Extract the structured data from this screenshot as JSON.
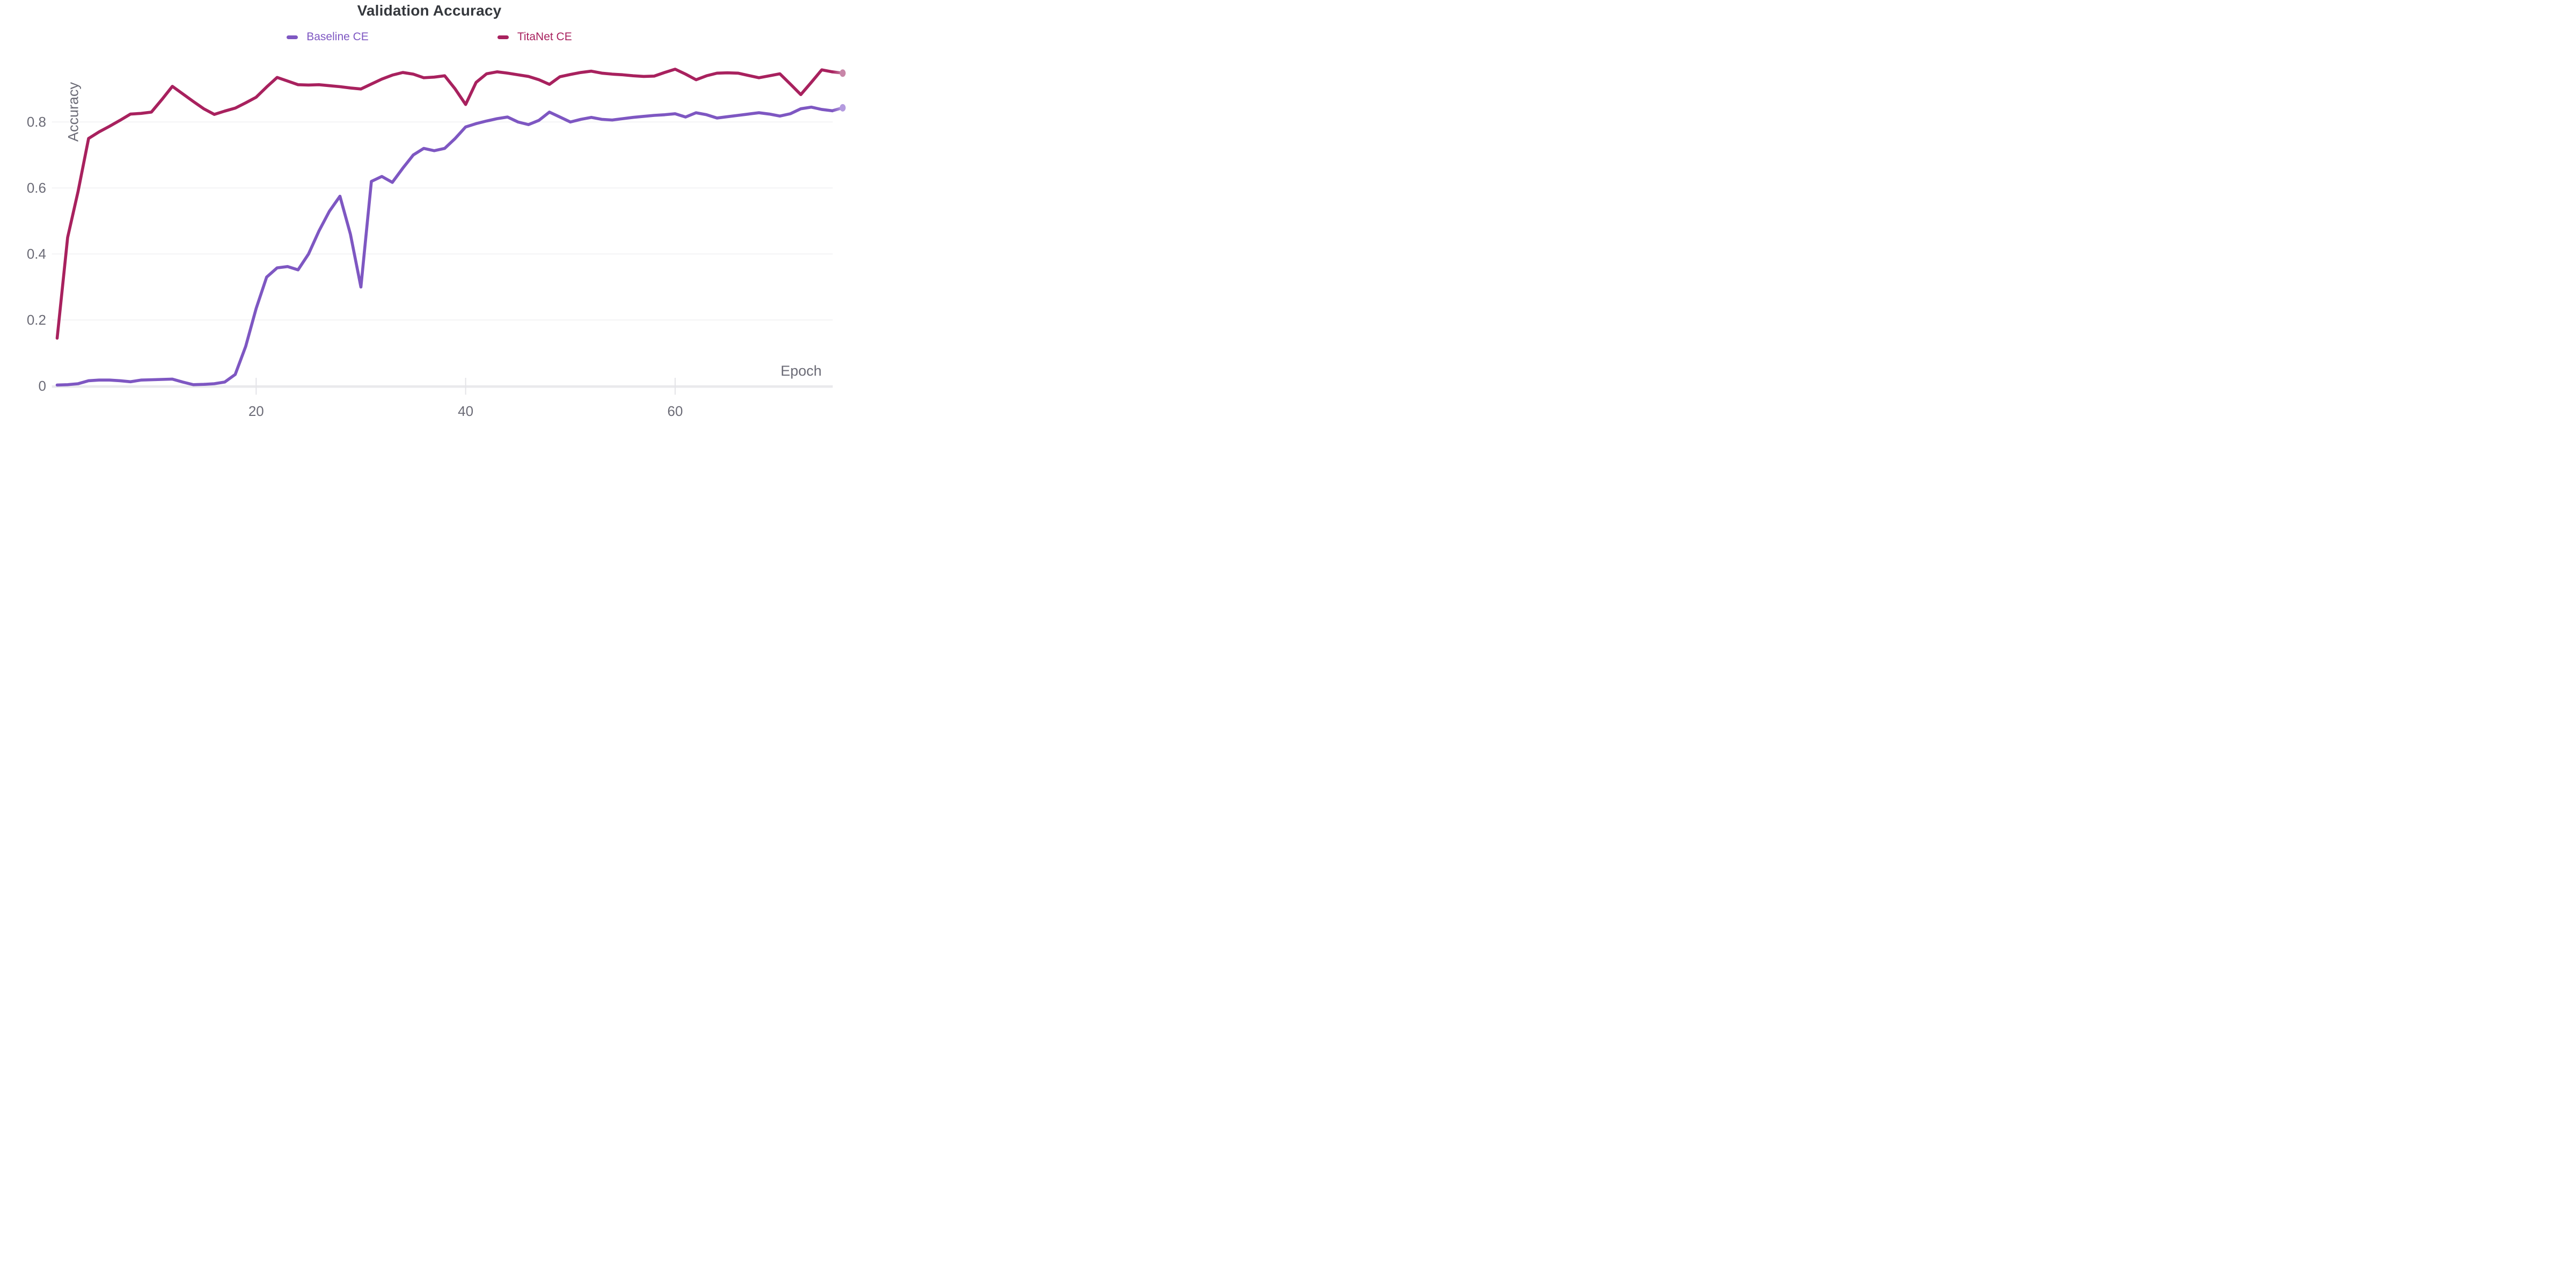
{
  "chart": {
    "title": "Validation Accuracy",
    "x_axis_label": "Epoch",
    "y_axis_label": "Accuracy"
  },
  "legend": [
    {
      "label": "Baseline CE",
      "color": "#7E57C2"
    },
    {
      "label": "TitaNet CE",
      "color": "#A8215E"
    }
  ],
  "colors": {
    "title_text": "#35383D",
    "axis_text": "#6B6B76",
    "gridline": "#EFEFF1",
    "baseline_band": "#E9E9EC",
    "tick_mark": "#E4E4E8",
    "background": "#FFFFFF"
  },
  "chart_data": {
    "type": "line",
    "title": "Validation Accuracy",
    "xlabel": "Epoch",
    "ylabel": "Accuracy",
    "x_ticks": [
      20,
      40,
      60
    ],
    "y_ticks": [
      0,
      0.2,
      0.4,
      0.6,
      0.8
    ],
    "xlim": [
      1,
      76
    ],
    "ylim": [
      0,
      1.02
    ],
    "grid": "horizontal-only",
    "legend_position": "top-center",
    "epochs": [
      1,
      2,
      3,
      4,
      5,
      6,
      7,
      8,
      9,
      10,
      11,
      12,
      13,
      14,
      15,
      16,
      17,
      18,
      19,
      20,
      21,
      22,
      23,
      24,
      25,
      26,
      27,
      28,
      29,
      30,
      31,
      32,
      33,
      34,
      35,
      36,
      37,
      38,
      39,
      40,
      41,
      42,
      43,
      44,
      45,
      46,
      47,
      48,
      49,
      50,
      51,
      52,
      53,
      54,
      55,
      56,
      57,
      58,
      59,
      60,
      61,
      62,
      63,
      64,
      65,
      66,
      67,
      68,
      69,
      70,
      71,
      72,
      73,
      74,
      75,
      76
    ],
    "series": [
      {
        "name": "Baseline CE",
        "color": "#7E57C2",
        "endpoint_color": "#B49BDF",
        "values": [
          0.003,
          0.004,
          0.007,
          0.016,
          0.018,
          0.018,
          0.016,
          0.013,
          0.018,
          0.019,
          0.02,
          0.021,
          0.012,
          0.004,
          0.005,
          0.007,
          0.012,
          0.035,
          0.12,
          0.235,
          0.33,
          0.358,
          0.362,
          0.352,
          0.4,
          0.47,
          0.53,
          0.575,
          0.46,
          0.3,
          0.62,
          0.635,
          0.617,
          0.66,
          0.7,
          0.72,
          0.713,
          0.72,
          0.75,
          0.785,
          0.795,
          0.803,
          0.81,
          0.815,
          0.8,
          0.792,
          0.805,
          0.83,
          0.815,
          0.8,
          0.808,
          0.814,
          0.808,
          0.806,
          0.81,
          0.814,
          0.817,
          0.82,
          0.822,
          0.825,
          0.815,
          0.828,
          0.822,
          0.812,
          0.816,
          0.82,
          0.824,
          0.828,
          0.824,
          0.818,
          0.825,
          0.84,
          0.845,
          0.838,
          0.834,
          0.843
        ]
      },
      {
        "name": "TitaNet CE",
        "color": "#A8215E",
        "endpoint_color": "#C886A8",
        "values": [
          0.145,
          0.45,
          0.59,
          0.75,
          0.77,
          0.787,
          0.805,
          0.824,
          0.826,
          0.83,
          0.868,
          0.908,
          0.885,
          0.862,
          0.84,
          0.823,
          0.833,
          0.842,
          0.858,
          0.875,
          0.906,
          0.935,
          0.924,
          0.913,
          0.912,
          0.913,
          0.91,
          0.907,
          0.903,
          0.9,
          0.915,
          0.93,
          0.942,
          0.95,
          0.945,
          0.934,
          0.936,
          0.94,
          0.9,
          0.853,
          0.92,
          0.946,
          0.952,
          0.948,
          0.943,
          0.938,
          0.928,
          0.914,
          0.937,
          0.944,
          0.95,
          0.954,
          0.948,
          0.945,
          0.943,
          0.94,
          0.938,
          0.939,
          0.95,
          0.96,
          0.945,
          0.928,
          0.94,
          0.948,
          0.949,
          0.948,
          0.941,
          0.934,
          0.94,
          0.946,
          0.915,
          0.883,
          0.92,
          0.958,
          0.952,
          0.948
        ]
      }
    ]
  }
}
